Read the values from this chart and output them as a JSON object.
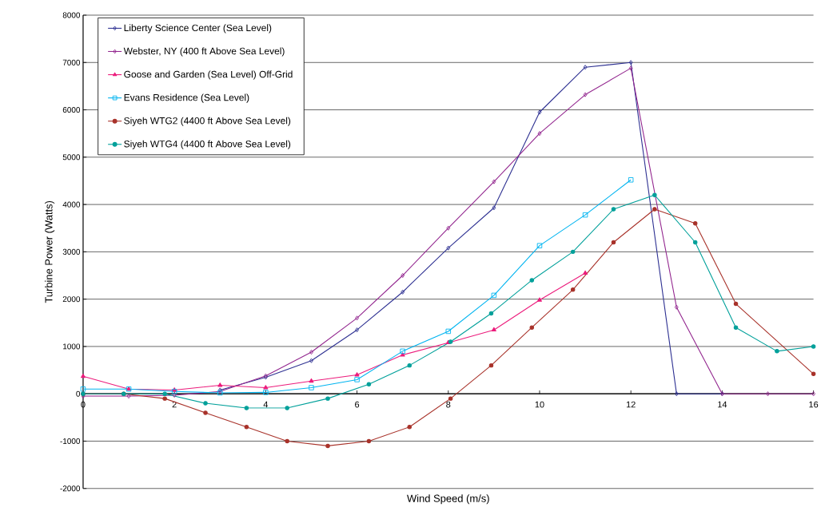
{
  "chart_data": {
    "type": "line",
    "xlabel": "Wind Speed (m/s)",
    "ylabel": "Turbine Power (Watts)",
    "xlim": [
      0,
      16
    ],
    "ylim": [
      -2000,
      8000
    ],
    "xticks": [
      0,
      2,
      4,
      6,
      8,
      10,
      12,
      14,
      16
    ],
    "yticks": [
      -2000,
      -1000,
      0,
      1000,
      2000,
      3000,
      4000,
      5000,
      6000,
      7000,
      8000
    ],
    "grid": "y",
    "legend": "top left",
    "series": [
      {
        "name": "Liberty Science Center (Sea Level)",
        "color": "#2e3192",
        "marker": "diamond",
        "x": [
          3,
          4,
          5,
          6,
          7,
          8,
          9,
          10,
          11,
          12,
          13,
          14
        ],
        "values": [
          80,
          350,
          700,
          1350,
          2150,
          3080,
          3930,
          5950,
          6900,
          7000,
          0,
          0
        ]
      },
      {
        "name": "Webster, NY (400 ft Above Sea Level)",
        "color": "#93278f",
        "marker": "diamond",
        "x": [
          0,
          1,
          2,
          3,
          4,
          5,
          6,
          7,
          8,
          9,
          10,
          11,
          12,
          13,
          14,
          15,
          16
        ],
        "values": [
          -50,
          -50,
          -30,
          50,
          380,
          880,
          1600,
          2500,
          3500,
          4480,
          5500,
          6320,
          6880,
          1830,
          0,
          0,
          0
        ]
      },
      {
        "name": "Goose and Garden (Sea Level) Off-Grid",
        "color": "#ec1c7c",
        "marker": "triangle",
        "x": [
          0,
          1,
          2,
          3,
          4,
          5,
          6,
          7,
          8,
          9,
          10,
          11
        ],
        "values": [
          370,
          100,
          80,
          180,
          130,
          270,
          400,
          820,
          1080,
          1350,
          1980,
          2550
        ]
      },
      {
        "name": "Evans Residence (Sea Level)",
        "color": "#00b4f0",
        "marker": "square",
        "x": [
          0,
          1,
          2,
          3,
          4,
          5,
          6,
          7,
          8,
          9,
          10,
          11,
          12
        ],
        "values": [
          100,
          100,
          50,
          20,
          30,
          130,
          300,
          900,
          1320,
          2080,
          3130,
          3780,
          4520
        ]
      },
      {
        "name": "Siyeh WTG2 (4400 ft Above Sea Level)",
        "color": "#a8322a",
        "marker": "circle",
        "x": [
          0,
          0.89,
          1.79,
          2.68,
          3.58,
          4.47,
          5.36,
          6.26,
          7.15,
          8.05,
          8.94,
          9.83,
          10.73,
          11.62,
          12.52,
          13.41,
          14.3,
          16
        ],
        "values": [
          0,
          0,
          -100,
          -400,
          -700,
          -1000,
          -1100,
          -1000,
          -700,
          -100,
          600,
          1400,
          2200,
          3200,
          3900,
          3600,
          1900,
          420
        ]
      },
      {
        "name": "Siyeh WTG4 (4400 ft Above Sea Level)",
        "color": "#00a09a",
        "marker": "circle",
        "x": [
          0,
          0.89,
          1.79,
          2.68,
          3.58,
          4.47,
          5.36,
          6.26,
          7.15,
          8.05,
          8.94,
          9.83,
          10.73,
          11.62,
          12.52,
          13.41,
          14.3,
          15.2,
          16
        ],
        "values": [
          0,
          0,
          0,
          -200,
          -300,
          -300,
          -100,
          200,
          600,
          1100,
          1700,
          2400,
          3000,
          3900,
          4200,
          3200,
          1400,
          900,
          1000
        ]
      }
    ]
  }
}
